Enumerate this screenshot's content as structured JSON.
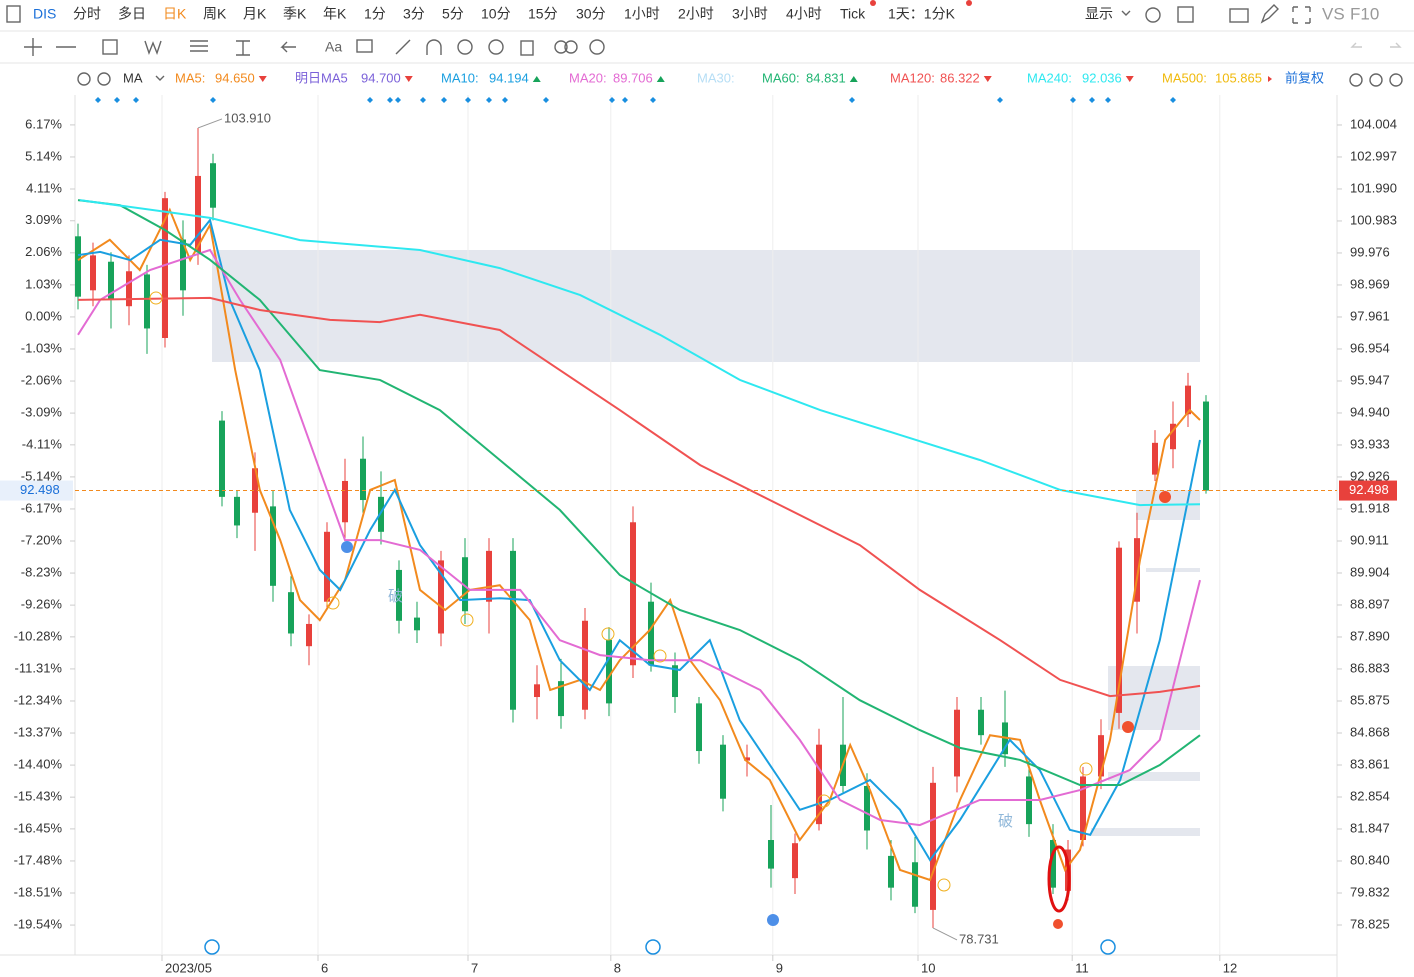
{
  "toolbar": {
    "symbol": "DIS",
    "periods": [
      "分时",
      "多日",
      "日K",
      "周K",
      "月K",
      "季K",
      "年K",
      "1分",
      "3分",
      "5分",
      "10分",
      "15分",
      "30分",
      "1小时",
      "2小时",
      "3小时",
      "4小时",
      "Tick",
      "1天：1分K"
    ],
    "display": "显示",
    "vs": "VS",
    "f10": "F10",
    "font_tool": "Aa"
  },
  "chart_data": {
    "type": "candlestick",
    "indicator": "MA",
    "adjust": "前复权",
    "xlim": [
      0,
      210
    ],
    "xticks": [
      {
        "value": 14.5,
        "label": "2023/05"
      },
      {
        "value": 40.5,
        "label": "6"
      },
      {
        "value": 65.5,
        "label": "7"
      },
      {
        "value": 89.3,
        "label": "8"
      },
      {
        "value": 116.3,
        "label": "9"
      },
      {
        "value": 140.5,
        "label": "10"
      },
      {
        "value": 166.2,
        "label": "11"
      },
      {
        "value": 190.8,
        "label": "12"
      }
    ],
    "grid": "x",
    "ylim": [
      78.353,
      104.79
    ],
    "yticks": [
      104.004,
      102.997,
      {
        "value": 101.99,
        "label": "101.990"
      },
      100.983,
      99.976,
      98.969,
      97.961,
      96.954,
      95.947,
      {
        "value": 94.94,
        "label": "94.940"
      },
      93.933,
      92.926,
      91.918,
      90.911,
      89.904,
      88.897,
      {
        "value": 87.89,
        "label": "87.890"
      },
      86.883,
      85.875,
      84.868,
      83.861,
      82.854,
      81.847,
      {
        "value": 80.84,
        "label": "80.840"
      },
      79.832,
      78.825
    ],
    "y2lim": [
      -20.02,
      6.97
    ],
    "y2ticks": [
      {
        "value": 6.17,
        "label": "6.17%"
      },
      {
        "value": 5.14,
        "label": "5.14%"
      },
      {
        "value": 4.11,
        "label": "4.11%"
      },
      {
        "value": 3.09,
        "label": "3.09%"
      },
      {
        "value": 2.06,
        "label": "2.06%"
      },
      {
        "value": 1.03,
        "label": "1.03%"
      },
      {
        "value": 0,
        "label": "0.00%"
      },
      {
        "value": -1.03,
        "label": "-1.03%"
      },
      {
        "value": -2.06,
        "label": "-2.06%"
      },
      {
        "value": -3.09,
        "label": "-3.09%"
      },
      {
        "value": -4.11,
        "label": "-4.11%"
      },
      {
        "value": -5.14,
        "label": "-5.14%"
      },
      {
        "value": -6.17,
        "label": "-6.17%"
      },
      {
        "value": -7.2,
        "label": "-7.20%"
      },
      {
        "value": -8.23,
        "label": "-8.23%"
      },
      {
        "value": -9.26,
        "label": "-9.26%"
      },
      {
        "value": -10.28,
        "label": "-10.28%"
      },
      {
        "value": -11.31,
        "label": "-11.31%"
      },
      {
        "value": -12.34,
        "label": "-12.34%"
      },
      {
        "value": -13.37,
        "label": "-13.37%"
      },
      {
        "value": -14.4,
        "label": "-14.40%"
      },
      {
        "value": -15.43,
        "label": "-15.43%"
      },
      {
        "value": -16.45,
        "label": "-16.45%"
      },
      {
        "value": -17.48,
        "label": "-17.48%"
      },
      {
        "value": -18.51,
        "label": "-18.51%"
      },
      {
        "value": -19.54,
        "label": "-19.54%"
      }
    ],
    "last_price": 92.498,
    "up_color": "#e8413c",
    "down_color": "#17a35a",
    "candles": {
      "x": [
        0.5,
        3,
        6,
        9,
        12,
        15,
        18,
        20.5,
        23,
        24.5,
        27,
        30,
        33,
        36,
        39,
        42,
        45,
        48,
        51,
        54,
        57,
        61,
        65,
        69,
        73,
        77,
        81,
        85,
        89,
        93,
        96,
        100,
        104,
        108,
        112,
        116,
        120,
        124,
        128,
        132,
        136,
        140,
        143,
        147,
        151,
        155,
        159,
        163,
        165.5,
        168,
        171,
        174,
        177,
        180,
        183,
        185.5,
        188.5
      ],
      "open": [
        100.5,
        98.8,
        99.7,
        98.3,
        99.3,
        97.3,
        100.4,
        100.0,
        102.8,
        94.7,
        92.3,
        91.8,
        92.0,
        89.3,
        87.6,
        89.0,
        91.5,
        93.5,
        92.3,
        90.0,
        88.5,
        88.0,
        90.4,
        89.0,
        90.6,
        86.0,
        86.5,
        85.6,
        87.8,
        87.0,
        89.0,
        87.0,
        85.8,
        84.5,
        84.0,
        81.5,
        80.3,
        82.0,
        84.5,
        83.2,
        81.0,
        80.8,
        79.3,
        83.5,
        85.6,
        85.2,
        83.5,
        81.5,
        79.9,
        81.5,
        83.5,
        85.5,
        89.0,
        93.0,
        93.8,
        94.9,
        95.3
      ],
      "high": [
        100.9,
        100.3,
        100.0,
        99.9,
        99.6,
        101.9,
        101.0,
        103.91,
        103.1,
        95.0,
        92.5,
        93.7,
        92.5,
        89.8,
        88.6,
        91.5,
        93.5,
        94.2,
        93.1,
        90.3,
        89.0,
        90.6,
        91.0,
        91.0,
        91.0,
        87.0,
        87.2,
        88.8,
        88.2,
        92.0,
        89.6,
        87.4,
        86.0,
        84.8,
        84.5,
        82.6,
        81.7,
        85.0,
        86.0,
        83.6,
        81.5,
        81.6,
        83.8,
        86.0,
        86.0,
        86.2,
        84.0,
        82.0,
        81.5,
        83.8,
        85.3,
        90.9,
        91.8,
        94.4,
        95.3,
        96.2,
        95.5
      ],
      "low": [
        98.2,
        98.3,
        97.6,
        97.7,
        96.8,
        97.0,
        98.0,
        99.6,
        101.0,
        92.0,
        91.0,
        90.6,
        89.0,
        87.6,
        87.0,
        88.8,
        91.0,
        91.8,
        90.8,
        88.0,
        87.7,
        87.6,
        88.3,
        88.0,
        85.2,
        85.3,
        85.0,
        85.3,
        85.4,
        86.6,
        86.8,
        85.5,
        83.9,
        82.4,
        83.5,
        80.0,
        79.8,
        81.8,
        83.0,
        81.2,
        79.6,
        79.2,
        78.731,
        83.0,
        84.5,
        83.8,
        81.6,
        79.8,
        79.6,
        81.3,
        83.1,
        85.0,
        88.0,
        92.8,
        93.2,
        94.5,
        92.4
      ],
      "close": [
        98.6,
        99.9,
        98.5,
        99.4,
        97.6,
        101.7,
        98.8,
        102.4,
        101.4,
        92.3,
        91.4,
        93.2,
        89.5,
        88.0,
        88.3,
        91.2,
        92.8,
        92.2,
        91.2,
        88.4,
        88.1,
        90.3,
        88.7,
        90.6,
        85.6,
        86.4,
        85.4,
        88.4,
        85.8,
        91.5,
        87.0,
        86.0,
        84.3,
        82.8,
        84.1,
        80.6,
        81.4,
        84.5,
        83.2,
        81.8,
        80.0,
        79.4,
        83.3,
        85.6,
        84.8,
        84.2,
        82.0,
        80.0,
        81.2,
        83.5,
        84.8,
        90.7,
        91.0,
        94.0,
        94.6,
        95.8,
        92.498
      ]
    },
    "annotations": [
      {
        "x": 20.5,
        "value": 103.91,
        "label": "103.910"
      },
      {
        "x": 143,
        "value": 78.731,
        "label": "78.731"
      }
    ],
    "signals": [
      "破",
      "破"
    ],
    "series": [
      {
        "name": "MA5:",
        "color": "#f28a1e",
        "legend_value": {
          "value": 94.65,
          "label": "94.650"
        },
        "trend": "down",
        "x": [
          0.5,
          5.8,
          10.8,
          15.8,
          19.2,
          22.5,
          26.7,
          30.8,
          34.2,
          37.5,
          40.8,
          45,
          49.2,
          53.3,
          57.5,
          61.7,
          65.8,
          70.8,
          75.8,
          79.2,
          84.2,
          87.5,
          90.8,
          95.8,
          99.2,
          102.5,
          107.5,
          111.7,
          115.8,
          120.8,
          125.8,
          129.2,
          132.5,
          137.5,
          142.5,
          147.5,
          152.5,
          157.5,
          160.8,
          165,
          167.5,
          172.5,
          177.5,
          181.7,
          185.8,
          187.5
        ],
        "values": [
          99.75,
          100.39,
          99.44,
          101.33,
          99.75,
          100.86,
          96.29,
          92.52,
          90.94,
          89.05,
          88.42,
          89.68,
          92.52,
          92.83,
          89.37,
          88.74,
          89.37,
          89.52,
          88.42,
          86.22,
          86.54,
          86.22,
          87.16,
          88.11,
          89.05,
          87.16,
          85.9,
          84.02,
          83.39,
          81.5,
          82.76,
          84.49,
          83.07,
          80.56,
          80.24,
          82.76,
          84.8,
          84.65,
          82.76,
          80.56,
          81.19,
          84.65,
          90.31,
          94.09,
          95.03,
          94.72
        ]
      },
      {
        "name": "明日MA5",
        "color": "#7b61d9",
        "legend_value": {
          "value": 94.7,
          "label": "94.700"
        },
        "trend": "down"
      },
      {
        "name": "MA10:",
        "color": "#1a9fe0",
        "legend_value": 94.194,
        "trend": "up",
        "x": [
          0.5,
          4.2,
          9.2,
          14.2,
          19.2,
          22.5,
          25.8,
          30.8,
          35.8,
          40.8,
          44.2,
          49.2,
          53.3,
          57.5,
          64.2,
          70.8,
          75.8,
          80.8,
          85.8,
          90.8,
          95.8,
          100.8,
          105.8,
          110.8,
          117.5,
          120.8,
          125.8,
          132.5,
          137.5,
          142.5,
          147.5,
          155.8,
          160.8,
          165.8,
          169.2,
          174.2,
          180.8,
          187.5
        ],
        "values": [
          99.91,
          100.01,
          99.75,
          100.39,
          100.23,
          101.01,
          98.5,
          96.29,
          91.89,
          90.0,
          89.37,
          91.26,
          92.52,
          90.78,
          89.05,
          89.11,
          89.05,
          87.16,
          86.22,
          87.79,
          87.01,
          86.85,
          87.79,
          85.27,
          83.39,
          82.45,
          82.76,
          83.39,
          82.45,
          80.87,
          82.13,
          84.65,
          83.7,
          81.82,
          81.66,
          83.39,
          87.79,
          94.09
        ]
      },
      {
        "name": "MA20:",
        "color": "#e36bd3",
        "legend_value": 89.706,
        "trend": "up",
        "x": [
          0.5,
          4.2,
          12.5,
          22.5,
          27.5,
          34.2,
          40.8,
          45,
          50.8,
          57.5,
          65.8,
          74.2,
          80.8,
          87.5,
          95.8,
          104.2,
          114.2,
          120.8,
          127.5,
          134.2,
          140.8,
          150.8,
          160.8,
          167.5,
          175.8,
          180.8,
          187.5
        ],
        "values": [
          97.4,
          98.5,
          99.44,
          100.07,
          98.5,
          96.61,
          93.14,
          90.94,
          90.94,
          90.63,
          89.37,
          89.37,
          87.79,
          87.32,
          87.16,
          87.16,
          86.22,
          84.65,
          82.76,
          82.13,
          81.97,
          82.76,
          82.76,
          83.07,
          83.7,
          84.65,
          89.68
        ]
      },
      {
        "name": "MA30:",
        "color": "#b6def5"
      },
      {
        "name": "MA60:",
        "color": "#22b573",
        "legend_value": 84.831,
        "trend": "up",
        "x": [
          0.5,
          7.5,
          15,
          22.5,
          30.8,
          40.8,
          50.8,
          60.8,
          70.8,
          80.8,
          90.8,
          100.8,
          110.8,
          120.8,
          130.8,
          140.8,
          147.5,
          157.5,
          167.5,
          174.2,
          180.8,
          187.5
        ],
        "values": [
          101.64,
          101.48,
          100.7,
          99.76,
          98.5,
          96.29,
          95.98,
          95.03,
          93.46,
          91.89,
          89.84,
          88.74,
          88.11,
          87.16,
          85.9,
          84.96,
          84.4,
          84.02,
          83.23,
          83.23,
          83.86,
          84.8
        ]
      },
      {
        "name": "MA120:",
        "color": "#f05252",
        "legend_value": 86.322,
        "trend": "down",
        "x": [
          0.5,
          22.5,
          30.8,
          42.5,
          50.8,
          57.5,
          70.8,
          80.8,
          90.8,
          104.2,
          117.5,
          130.8,
          140.8,
          154.2,
          164.2,
          172.5,
          180.8,
          187.5
        ],
        "values": [
          98.5,
          98.56,
          98.18,
          97.87,
          97.8,
          98.03,
          97.55,
          96.29,
          95.03,
          93.3,
          92.04,
          90.78,
          89.37,
          87.79,
          86.54,
          86.03,
          86.16,
          86.35
        ]
      },
      {
        "name": "MA240:",
        "color": "#2ee8f0",
        "legend_value": 92.036,
        "trend": "down",
        "x": [
          0.8,
          22.5,
          37.5,
          57.5,
          70.8,
          84.2,
          97.5,
          110.8,
          124.2,
          137.5,
          150.8,
          164.2,
          177.5,
          187.5
        ],
        "values": [
          101.64,
          101.08,
          100.38,
          100.07,
          99.5,
          98.65,
          97.4,
          95.98,
          95.03,
          94.25,
          93.46,
          92.52,
          92.04,
          92.07
        ]
      },
      {
        "name": "MA500:",
        "color": "#f0b90b",
        "legend_value": 105.865,
        "trend": "right"
      }
    ]
  }
}
